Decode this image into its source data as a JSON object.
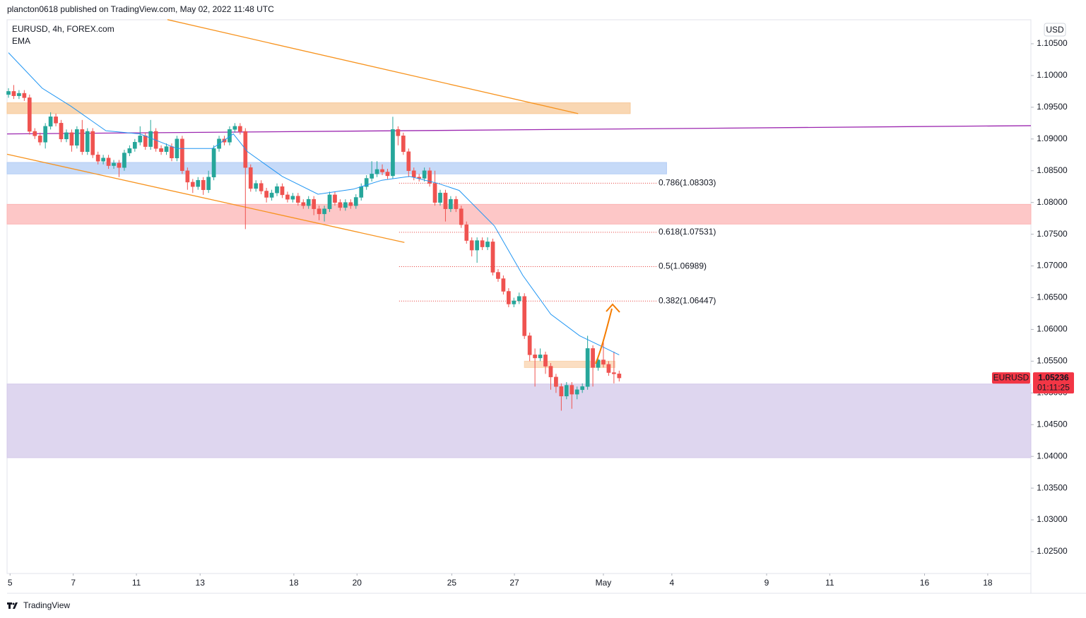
{
  "header": {
    "publisher": "plancton0618 published on TradingView.com, May 02, 2022 11:48 UTC"
  },
  "chart_data": {
    "type": "candlestick",
    "title": "EURUSD, 4h, FOREX.com",
    "indicator": "EMA",
    "currency": "USD",
    "symbol": "EURUSD",
    "last_price": 1.05236,
    "countdown": "01:11:25",
    "up_color": "#26a69a",
    "down_color": "#ef5350",
    "open": [
      1.097,
      1.0975,
      1.0968,
      1.0972,
      1.0965,
      1.0912,
      1.0905,
      1.0895,
      1.092,
      1.0935,
      1.0925,
      1.09,
      1.091,
      1.089,
      1.0915,
      1.088,
      1.0912,
      1.0875,
      1.0865,
      1.087,
      1.0858,
      1.0862,
      1.0855,
      1.0878,
      1.0885,
      1.0895,
      1.0905,
      1.0888,
      1.0912,
      1.0885,
      1.088,
      1.0888,
      1.087,
      1.09,
      1.085,
      1.0832,
      1.0825,
      1.0835,
      1.082,
      1.084,
      1.0885,
      1.09,
      1.0895,
      1.0915,
      1.092,
      1.0912,
      1.0855,
      1.0822,
      1.083,
      1.0818,
      1.0808,
      1.0815,
      1.0825,
      1.0812,
      1.0805,
      1.081,
      1.08,
      1.0795,
      1.0805,
      1.079,
      1.0782,
      1.079,
      1.0812,
      1.08,
      1.0792,
      1.08,
      1.0795,
      1.0808,
      1.0825,
      1.0838,
      1.0845,
      1.0852,
      1.0848,
      1.0842,
      1.0915,
      1.0905,
      1.088,
      1.085,
      1.084,
      1.0838,
      1.085,
      1.083,
      1.08,
      1.0815,
      1.079,
      1.0805,
      1.079,
      1.0765,
      1.074,
      1.0725,
      1.074,
      1.073,
      1.0738,
      1.069,
      1.068,
      1.066,
      1.064,
      1.0645,
      1.0652,
      1.059,
      1.056,
      1.0555,
      1.056,
      1.0542,
      1.0525,
      1.051,
      1.0495,
      1.0512,
      1.0498,
      1.0505,
      1.051,
      1.057,
      1.054,
      1.0552,
      1.0545,
      1.0532,
      1.053
    ],
    "high": [
      1.098,
      1.0985,
      1.0977,
      1.0977,
      1.097,
      1.0917,
      1.091,
      1.0925,
      1.0942,
      1.094,
      1.093,
      1.0915,
      1.0915,
      1.092,
      1.093,
      1.0917,
      1.0917,
      1.088,
      1.0875,
      1.0875,
      1.0867,
      1.0867,
      1.0883,
      1.089,
      1.09,
      1.092,
      1.091,
      1.093,
      1.0917,
      1.089,
      1.0893,
      1.0893,
      1.0905,
      1.0905,
      1.0855,
      1.0837,
      1.084,
      1.084,
      1.085,
      1.089,
      1.0905,
      1.0905,
      1.092,
      1.0925,
      1.0925,
      1.0917,
      1.086,
      1.0835,
      1.0835,
      1.0823,
      1.082,
      1.083,
      1.083,
      1.0817,
      1.0815,
      1.0815,
      1.0805,
      1.081,
      1.081,
      1.0795,
      1.0795,
      1.0817,
      1.0817,
      1.0805,
      1.0805,
      1.0805,
      1.0813,
      1.083,
      1.0843,
      1.0865,
      1.0865,
      1.086,
      1.0853,
      1.0935,
      1.092,
      1.091,
      1.0885,
      1.0855,
      1.0845,
      1.0855,
      1.0855,
      1.085,
      1.082,
      1.082,
      1.081,
      1.081,
      1.0795,
      1.077,
      1.0745,
      1.0745,
      1.0745,
      1.0745,
      1.0743,
      1.0695,
      1.0685,
      1.0665,
      1.065,
      1.0658,
      1.0657,
      1.0595,
      1.057,
      1.057,
      1.0565,
      1.0547,
      1.053,
      1.0515,
      1.0517,
      1.0517,
      1.051,
      1.0515,
      1.059,
      1.0575,
      1.0557,
      1.058,
      1.055,
      1.0565,
      1.0535
    ],
    "low": [
      1.0965,
      1.0963,
      1.0963,
      1.096,
      1.0907,
      1.09,
      1.089,
      1.0885,
      1.0915,
      1.092,
      1.0895,
      1.0895,
      1.088,
      1.0885,
      1.0875,
      1.0875,
      1.087,
      1.086,
      1.086,
      1.0853,
      1.0853,
      1.084,
      1.085,
      1.0873,
      1.088,
      1.089,
      1.0883,
      1.0883,
      1.088,
      1.0875,
      1.0875,
      1.0865,
      1.0865,
      1.0845,
      1.082,
      1.0815,
      1.082,
      1.0812,
      1.0815,
      1.0835,
      1.088,
      1.089,
      1.089,
      1.091,
      1.0907,
      1.0758,
      1.0817,
      1.0817,
      1.0813,
      1.08,
      1.0803,
      1.081,
      1.0807,
      1.08,
      1.08,
      1.0795,
      1.079,
      1.079,
      1.078,
      1.0772,
      1.077,
      1.0785,
      1.0795,
      1.0787,
      1.0787,
      1.079,
      1.079,
      1.0803,
      1.082,
      1.0833,
      1.084,
      1.0843,
      1.0837,
      1.0837,
      1.089,
      1.0875,
      1.084,
      1.0835,
      1.0833,
      1.0833,
      1.0825,
      1.0795,
      1.0795,
      1.077,
      1.0785,
      1.0785,
      1.076,
      1.0735,
      1.0715,
      1.0705,
      1.0725,
      1.0725,
      1.0685,
      1.0675,
      1.0655,
      1.0635,
      1.0635,
      1.064,
      1.0585,
      1.055,
      1.051,
      1.055,
      1.053,
      1.0505,
      1.05,
      1.0472,
      1.049,
      1.0475,
      1.049,
      1.05,
      1.0505,
      1.051,
      1.0535,
      1.054,
      1.0527,
      1.0515,
      1.0518
    ],
    "close": [
      1.0975,
      1.0968,
      1.0972,
      1.0965,
      1.0912,
      1.0905,
      1.0895,
      1.092,
      1.0935,
      1.0925,
      1.09,
      1.091,
      1.089,
      1.0915,
      1.088,
      1.0912,
      1.0875,
      1.0865,
      1.087,
      1.0858,
      1.0862,
      1.0855,
      1.0878,
      1.0885,
      1.0895,
      1.0905,
      1.0888,
      1.0912,
      1.0885,
      1.088,
      1.0888,
      1.087,
      1.09,
      1.085,
      1.0832,
      1.0825,
      1.0835,
      1.082,
      1.084,
      1.0885,
      1.09,
      1.0895,
      1.0915,
      1.092,
      1.0912,
      1.0855,
      1.0822,
      1.083,
      1.0818,
      1.0808,
      1.0815,
      1.0825,
      1.0812,
      1.0805,
      1.081,
      1.08,
      1.0795,
      1.0805,
      1.079,
      1.0782,
      1.079,
      1.0812,
      1.08,
      1.0792,
      1.08,
      1.0795,
      1.0808,
      1.0825,
      1.0838,
      1.0845,
      1.0852,
      1.0848,
      1.0842,
      1.0915,
      1.0905,
      1.088,
      1.085,
      1.084,
      1.0838,
      1.085,
      1.083,
      1.08,
      1.0815,
      1.079,
      1.0805,
      1.079,
      1.0765,
      1.074,
      1.0725,
      1.074,
      1.073,
      1.0738,
      1.069,
      1.068,
      1.066,
      1.064,
      1.0645,
      1.0652,
      1.059,
      1.056,
      1.0555,
      1.056,
      1.0542,
      1.0525,
      1.051,
      1.0495,
      1.0512,
      1.0498,
      1.0505,
      1.051,
      1.057,
      1.054,
      1.0552,
      1.0545,
      1.0532,
      1.053,
      1.05236
    ],
    "ema": {
      "color": "#2196f3",
      "x": [
        0,
        6.4,
        11.8,
        18.5,
        25,
        32,
        38.7,
        42.7,
        45.4,
        52,
        58.8,
        65.5,
        70.9,
        76.2,
        81.6,
        85.6,
        92.3,
        97.7,
        103,
        108.5,
        112.5,
        116
      ],
      "values": [
        1.1036,
        1.098,
        1.0952,
        1.0913,
        1.0908,
        1.0885,
        1.0885,
        1.0908,
        1.088,
        1.0841,
        1.0813,
        1.0821,
        1.0835,
        1.0841,
        1.083,
        1.0819,
        1.0763,
        1.0685,
        1.0624,
        1.059,
        1.0574,
        1.056
      ]
    },
    "xlim": [
      -0.27,
      194.2
    ],
    "xticks": [
      {
        "value": 0.3,
        "label": "5"
      },
      {
        "value": 12.3,
        "label": "7"
      },
      {
        "value": 24.3,
        "label": "11"
      },
      {
        "value": 36.4,
        "label": "13"
      },
      {
        "value": 54.2,
        "label": "18"
      },
      {
        "value": 66.2,
        "label": "20"
      },
      {
        "value": 84.2,
        "label": "25"
      },
      {
        "value": 96.1,
        "label": "27"
      },
      {
        "value": 113,
        "label": "May"
      },
      {
        "value": 126,
        "label": "4"
      },
      {
        "value": 144,
        "label": "9"
      },
      {
        "value": 156,
        "label": "11"
      },
      {
        "value": 174,
        "label": "16"
      },
      {
        "value": 186,
        "label": "18"
      }
    ],
    "ylim": [
      1.02155,
      1.10878
    ],
    "yticks": [
      {
        "value": 1.025,
        "label": "1.02500"
      },
      {
        "value": 1.03,
        "label": "1.03000"
      },
      {
        "value": 1.035,
        "label": "1.03500"
      },
      {
        "value": 1.04,
        "label": "1.04000"
      },
      {
        "value": 1.045,
        "label": "1.04500"
      },
      {
        "value": 1.05,
        "label": "1.05000"
      },
      {
        "value": 1.055,
        "label": "1.05500"
      },
      {
        "value": 1.06,
        "label": "1.06000"
      },
      {
        "value": 1.065,
        "label": "1.06500"
      },
      {
        "value": 1.07,
        "label": "1.07000"
      },
      {
        "value": 1.075,
        "label": "1.07500"
      },
      {
        "value": 1.08,
        "label": "1.08000"
      },
      {
        "value": 1.085,
        "label": "1.08500"
      },
      {
        "value": 1.09,
        "label": "1.09000"
      },
      {
        "value": 1.095,
        "label": "1.09500"
      },
      {
        "value": 1.1,
        "label": "1.10000"
      },
      {
        "value": 1.105,
        "label": "1.10500"
      }
    ],
    "zones": [
      {
        "color": "#f7c99a",
        "x": [
          -0.27,
          118.1
        ],
        "y": [
          1.094,
          1.0957
        ]
      },
      {
        "color": "#b3cdf5",
        "x": [
          -0.27,
          125
        ],
        "y": [
          1.0845,
          1.0863
        ]
      },
      {
        "color": "#fcb4b4",
        "x": [
          -0.27,
          194.2
        ],
        "y": [
          1.0766,
          1.0797
        ]
      },
      {
        "color": "#d3c8ea",
        "x": [
          -0.27,
          194.2
        ],
        "y": [
          1.0398,
          1.0514
        ]
      },
      {
        "color": "#f9d3ad",
        "x": [
          98,
          115.2
        ],
        "y": [
          1.054,
          1.055
        ]
      }
    ],
    "trendlines": [
      {
        "color": "#f7931e",
        "x": [
          30.2,
          108.2
        ],
        "y": [
          1.1088,
          1.094
        ]
      },
      {
        "color": "#f7931e",
        "x": [
          -0.27,
          75.2
        ],
        "y": [
          1.0876,
          1.0737
        ]
      },
      {
        "color": "#9c27b0",
        "x": [
          -0.27,
          194.2
        ],
        "y": [
          1.0908,
          1.0921
        ]
      }
    ],
    "fib": {
      "color": "#e53935",
      "x": [
        74.2,
        123.2
      ],
      "levels": [
        {
          "value": 1.08303,
          "label": "0.786(1.08303)"
        },
        {
          "value": 1.07531,
          "label": "0.618(1.07531)"
        },
        {
          "value": 1.06989,
          "label": "0.5(1.06989)"
        },
        {
          "value": 1.06447,
          "label": "0.382(1.06447)"
        }
      ]
    }
  },
  "footer": {
    "brand": "TradingView"
  }
}
